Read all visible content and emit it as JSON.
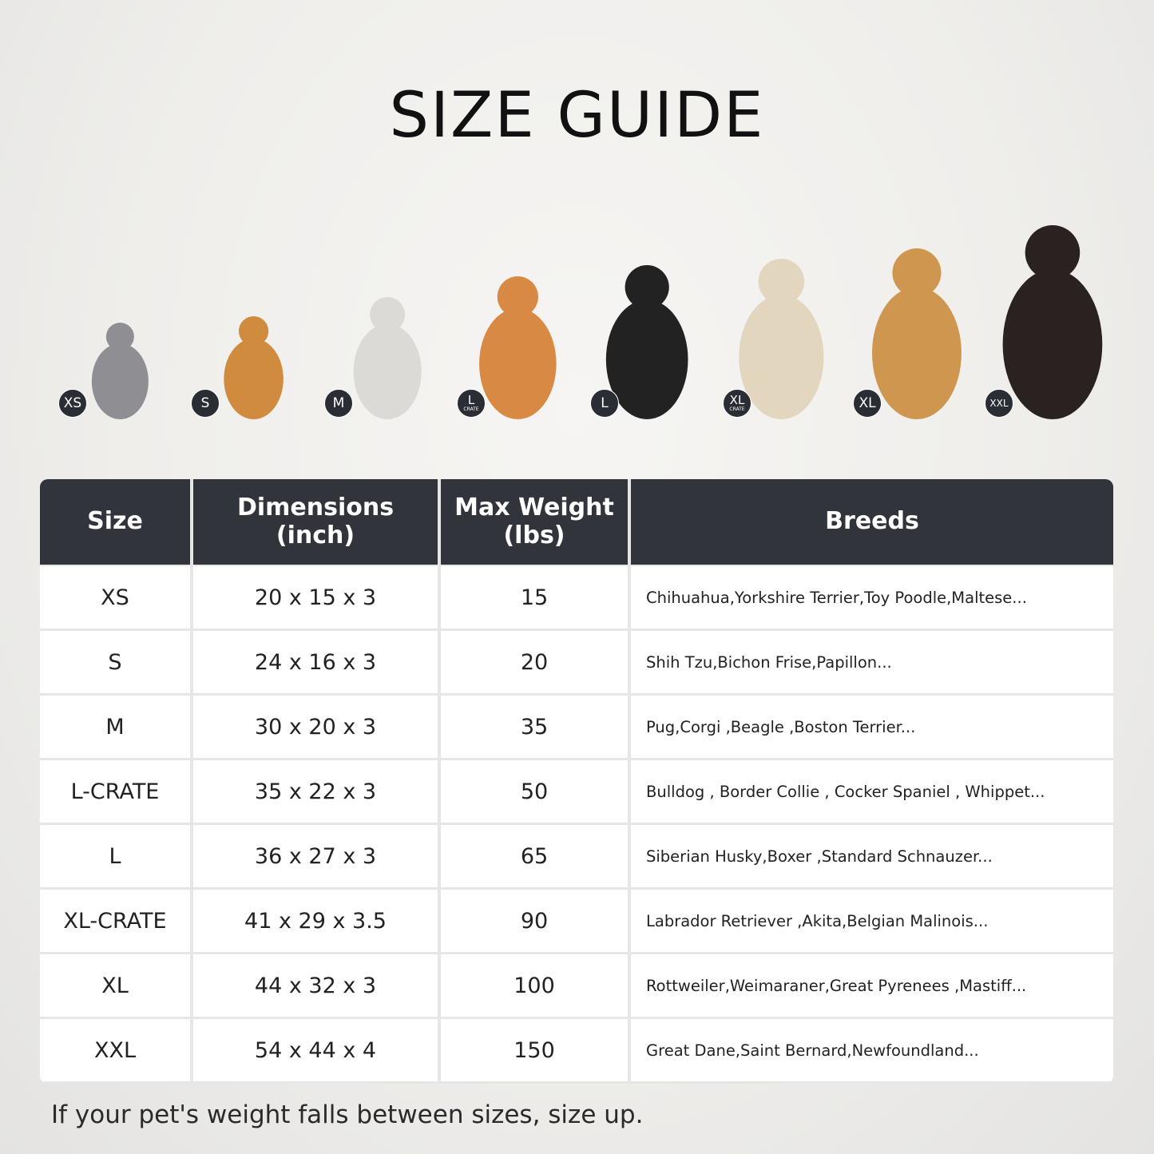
{
  "title": "SIZE GUIDE",
  "pets": [
    {
      "badge": "XS",
      "sub": "",
      "animal": "cat",
      "color": "#8f8f93"
    },
    {
      "badge": "S",
      "sub": "",
      "animal": "pomeranian",
      "color": "#d08b3e"
    },
    {
      "badge": "M",
      "sub": "",
      "animal": "french-bulldog",
      "color": "#dcdad6"
    },
    {
      "badge": "L",
      "sub": "CRATE",
      "animal": "shiba-inu",
      "color": "#d88a45"
    },
    {
      "badge": "L",
      "sub": "",
      "animal": "border-collie",
      "color": "#222222"
    },
    {
      "badge": "XL",
      "sub": "CRATE",
      "animal": "labrador",
      "color": "#e2d6bf"
    },
    {
      "badge": "XL",
      "sub": "",
      "animal": "golden-retriever",
      "color": "#cf9650"
    },
    {
      "badge": "XXL",
      "sub": "",
      "animal": "doberman",
      "color": "#2a2220"
    }
  ],
  "table": {
    "headers": [
      "Size",
      "Dimensions\n(inch)",
      "Max Weight\n(lbs)",
      "Breeds"
    ],
    "rows": [
      [
        "XS",
        "20 x 15 x 3",
        "15",
        "Chihuahua,Yorkshire Terrier,Toy Poodle,Maltese..."
      ],
      [
        "S",
        "24 x 16 x 3",
        "20",
        "Shih Tzu,Bichon Frise,Papillon..."
      ],
      [
        "M",
        "30 x 20 x 3",
        "35",
        "Pug,Corgi ,Beagle ,Boston Terrier..."
      ],
      [
        "L-CRATE",
        "35 x 22 x 3",
        "50",
        "Bulldog , Border Collie , Cocker Spaniel , Whippet..."
      ],
      [
        "L",
        "36 x 27 x 3",
        "65",
        "Siberian Husky,Boxer ,Standard Schnauzer..."
      ],
      [
        "XL-CRATE",
        "41 x 29 x 3.5",
        "90",
        "Labrador Retriever ,Akita,Belgian Malinois..."
      ],
      [
        "XL",
        "44 x 32 x 3",
        "100",
        "Rottweiler,Weimaraner,Great Pyrenees ,Mastiff..."
      ],
      [
        "XXL",
        "54 x 44 x 4",
        "150",
        "Great Dane,Saint Bernard,Newfoundland..."
      ]
    ]
  },
  "note": "If your pet's weight falls between sizes, size up.",
  "colors": {
    "header_bg": "#32343c",
    "badge_bg": "#2b2d35"
  }
}
